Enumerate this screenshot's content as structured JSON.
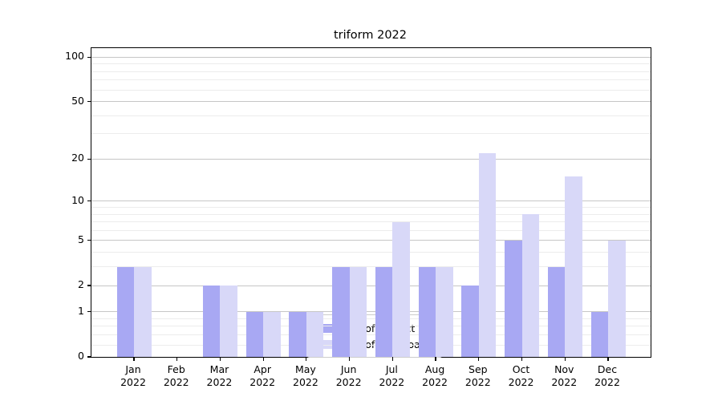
{
  "title": "triform 2022",
  "colors": {
    "series_ips": "#a8a8f3",
    "series_downloads": "#d8d8f8",
    "grid_major": "#c6c6c6",
    "grid_minor": "#ececec",
    "spine": "#000000"
  },
  "legend": {
    "items": [
      {
        "label": "Nb of distinct IPs",
        "color": "#a8a8f3"
      },
      {
        "label": "Nb of downloads",
        "color": "#d8d8f8"
      }
    ]
  },
  "chart_data": {
    "type": "bar",
    "title": "triform 2022",
    "categories": [
      "Jan 2022",
      "Feb 2022",
      "Mar 2022",
      "Apr 2022",
      "May 2022",
      "Jun 2022",
      "Jul 2022",
      "Aug 2022",
      "Sep 2022",
      "Oct 2022",
      "Nov 2022",
      "Dec 2022"
    ],
    "series": [
      {
        "name": "Nb of distinct IPs",
        "color": "#a8a8f3",
        "values": [
          3,
          0,
          2,
          1,
          1,
          3,
          3,
          3,
          2,
          5,
          3,
          1
        ]
      },
      {
        "name": "Nb of downloads",
        "color": "#d8d8f8",
        "values": [
          3,
          0,
          2,
          1,
          1,
          3,
          7,
          3,
          22,
          8,
          15,
          5
        ]
      }
    ],
    "xlabel": "",
    "ylabel": "",
    "yscale": "log1p",
    "ylim": [
      0,
      115
    ],
    "yticks": [
      0,
      1,
      2,
      5,
      10,
      20,
      50,
      100
    ],
    "yticklabels": [
      "0",
      "1",
      "2",
      "5",
      "10",
      "20",
      "50",
      "100"
    ],
    "minor_yticks": [
      0.2,
      0.4,
      0.6,
      0.8,
      3,
      4,
      6,
      7,
      8,
      9,
      30,
      40,
      60,
      70,
      80,
      90
    ],
    "grid": true,
    "legend_position": "lower center"
  }
}
